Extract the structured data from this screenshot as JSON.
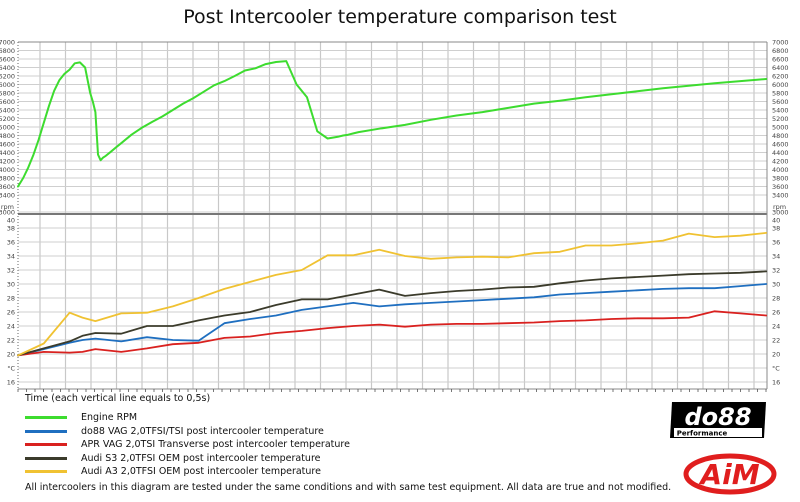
{
  "chart_data": {
    "type": "line",
    "title": "Post Intercooler temperature comparison test",
    "xlabel": "Time (each vertical line equals to 0,5s)",
    "x_grid_step_seconds": 0.5,
    "panels": [
      {
        "name": "rpm",
        "ylabel": "rpm",
        "ylim": [
          3000,
          7000
        ],
        "yticks": [
          3000,
          3400,
          3600,
          3800,
          4000,
          4200,
          4400,
          4600,
          4800,
          5000,
          5200,
          5400,
          5600,
          5800,
          6000,
          6200,
          6400,
          6600,
          6800,
          7000
        ],
        "series": [
          {
            "name": "Engine RPM",
            "color": "#3ddc2f",
            "x": [
              0,
              0.2,
              0.4,
              0.6,
              0.8,
              1.0,
              1.2,
              1.4,
              1.6,
              1.8,
              2.0,
              2.2,
              2.4,
              2.6,
              2.8,
              2.9,
              3.0,
              3.1,
              3.2,
              3.3,
              3.4,
              3.6,
              3.8,
              4.0,
              4.4,
              4.8,
              5.2,
              5.6,
              6.0,
              6.4,
              6.8,
              7.2,
              7.6,
              8.0,
              8.4,
              8.8,
              9.2,
              9.6,
              10.0,
              10.4,
              10.8,
              11.2,
              11.6,
              12.0,
              12.2,
              12.4,
              12.6,
              12.8,
              13.0,
              13.2,
              14,
              15,
              16,
              17,
              18,
              19,
              20,
              21,
              22,
              23,
              24,
              25,
              26,
              27,
              28,
              29
            ],
            "values": [
              3600,
              3800,
              4050,
              4350,
              4700,
              5100,
              5500,
              5850,
              6100,
              6250,
              6350,
              6500,
              6520,
              6400,
              5800,
              5600,
              5350,
              4350,
              4220,
              4280,
              4320,
              4420,
              4520,
              4620,
              4820,
              4980,
              5120,
              5250,
              5400,
              5550,
              5680,
              5830,
              5980,
              6080,
              6200,
              6330,
              6380,
              6480,
              6530,
              6550,
              6000,
              5700,
              4900,
              4730,
              4750,
              4770,
              4800,
              4820,
              4850,
              4880,
              4960,
              5050,
              5170,
              5270,
              5350,
              5450,
              5550,
              5620,
              5700,
              5770,
              5840,
              5910,
              5970,
              6030,
              6080,
              6130
            ]
          }
        ]
      },
      {
        "name": "temperature",
        "ylabel": "°C",
        "ylim": [
          15,
          40
        ],
        "yticks": [
          16,
          20,
          22,
          24,
          26,
          28,
          30,
          32,
          34,
          36,
          38,
          40
        ],
        "x": [
          0,
          1,
          2,
          2.5,
          3,
          4,
          5,
          6,
          7,
          8,
          9,
          10,
          11,
          12,
          13,
          14,
          15,
          16,
          17,
          18,
          19,
          20,
          21,
          22,
          23,
          24,
          25,
          26,
          27,
          28,
          29
        ],
        "series": [
          {
            "name": "do88 VAG 2,0TFSI/TSI post intercooler temperature",
            "color": "#1f6fc0",
            "values": [
              19.8,
              20.7,
              21.6,
              22.0,
              22.2,
              21.8,
              22.4,
              22.0,
              21.9,
              24.4,
              25.0,
              25.5,
              26.3,
              26.8,
              27.3,
              26.8,
              27.1,
              27.3,
              27.5,
              27.7,
              27.9,
              28.1,
              28.5,
              28.7,
              28.9,
              29.1,
              29.3,
              29.4,
              29.4,
              29.7,
              30.0
            ]
          },
          {
            "name": "APR VAG 2,0TSI Transverse post intercooler temperature",
            "color": "#d9211f",
            "values": [
              19.8,
              20.3,
              20.2,
              20.3,
              20.7,
              20.3,
              20.8,
              21.4,
              21.6,
              22.3,
              22.5,
              23.0,
              23.3,
              23.7,
              24.0,
              24.2,
              23.9,
              24.2,
              24.3,
              24.3,
              24.4,
              24.5,
              24.7,
              24.8,
              25.0,
              25.1,
              25.1,
              25.2,
              26.1,
              25.8,
              25.5
            ]
          },
          {
            "name": "Audi S3 2,0TFSI OEM post intercooler temperature",
            "color": "#3b3b2b",
            "values": [
              19.8,
              20.8,
              21.8,
              22.6,
              23.0,
              22.9,
              24.0,
              24.0,
              24.8,
              25.5,
              26.0,
              27.0,
              27.8,
              27.8,
              28.5,
              29.2,
              28.3,
              28.7,
              29.0,
              29.2,
              29.5,
              29.6,
              30.1,
              30.5,
              30.8,
              31.0,
              31.2,
              31.4,
              31.5,
              31.6,
              31.8
            ]
          },
          {
            "name": "Audi A3 2,0TFSI OEM post intercooler temperature",
            "color": "#f0c232",
            "values": [
              19.8,
              21.5,
              25.9,
              25.2,
              24.7,
              25.8,
              25.9,
              26.8,
              28.0,
              29.3,
              30.3,
              31.3,
              32.0,
              34.1,
              34.1,
              34.9,
              34.0,
              33.6,
              33.8,
              33.9,
              33.8,
              34.4,
              34.6,
              35.5,
              35.5,
              35.8,
              36.2,
              37.2,
              36.7,
              36.9,
              37.3
            ]
          }
        ]
      }
    ],
    "legend": {
      "position": "bottom-left",
      "entries": [
        {
          "label": "Engine RPM",
          "color": "#3ddc2f"
        },
        {
          "label": "do88 VAG 2,0TFSI/TSI post intercooler temperature",
          "color": "#1f6fc0"
        },
        {
          "label": "APR VAG 2,0TSI Transverse post intercooler temperature",
          "color": "#d9211f"
        },
        {
          "label": "Audi S3 2,0TFSI OEM post intercooler temperature",
          "color": "#3b3b2b"
        },
        {
          "label": "Audi A3 2,0TFSI OEM post intercooler temperature",
          "color": "#f0c232"
        }
      ]
    },
    "grid": true
  },
  "page": {
    "title": "Post Intercooler temperature comparison test",
    "xlabel": "Time (each vertical line equals to 0,5s)",
    "footnote": "All intercoolers in this diagram are tested under the same conditions and with same test equipment. All data are true and not modified.",
    "logos": {
      "do88_main": "do88",
      "do88_sub": "Performance",
      "aim": "AiM"
    }
  }
}
